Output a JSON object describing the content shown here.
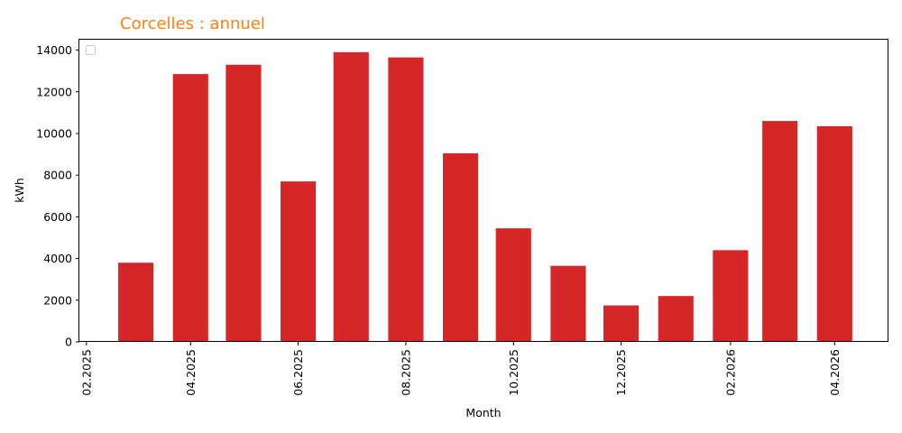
{
  "chart_data": {
    "type": "bar",
    "title": "Corcelles : annuel",
    "title_color": "#ff7f0e",
    "xlabel": "Month",
    "ylabel": "kWh",
    "bar_color": "#d62728",
    "ylim": [
      0,
      14500
    ],
    "y_ticks": [
      0,
      2000,
      4000,
      6000,
      8000,
      10000,
      12000,
      14000
    ],
    "x_range": [
      "2025-01-28",
      "2026-05-01"
    ],
    "x_ticks": [
      {
        "date": "2025-02-01",
        "label": "02.2025"
      },
      {
        "date": "2025-04-01",
        "label": "04.2025"
      },
      {
        "date": "2025-06-01",
        "label": "06.2025"
      },
      {
        "date": "2025-08-01",
        "label": "08.2025"
      },
      {
        "date": "2025-10-01",
        "label": "10.2025"
      },
      {
        "date": "2025-12-01",
        "label": "12.2025"
      },
      {
        "date": "2026-02-01",
        "label": "02.2026"
      },
      {
        "date": "2026-04-01",
        "label": "04.2026"
      }
    ],
    "categories": [
      "2025-03",
      "2025-04",
      "2025-05",
      "2025-06",
      "2025-07",
      "2025-08",
      "2025-09",
      "2025-10",
      "2025-11",
      "2025-12",
      "2026-01",
      "2026-02",
      "2026-03",
      "2026-04"
    ],
    "bar_dates": [
      "2025-03-01",
      "2025-04-01",
      "2025-05-01",
      "2025-06-01",
      "2025-07-01",
      "2025-08-01",
      "2025-09-01",
      "2025-10-01",
      "2025-11-01",
      "2025-12-01",
      "2026-01-01",
      "2026-02-01",
      "2026-03-01",
      "2026-04-01"
    ],
    "values": [
      3800,
      12850,
      13300,
      7700,
      13900,
      13650,
      9050,
      5450,
      3650,
      1750,
      2200,
      4400,
      10600,
      10350
    ],
    "legend": "top-left",
    "grid": false
  }
}
